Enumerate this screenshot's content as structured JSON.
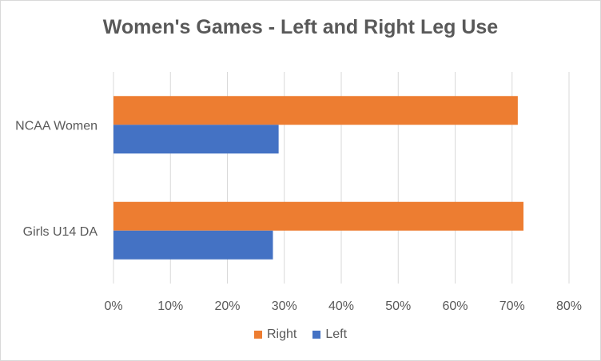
{
  "chart_data": {
    "type": "bar",
    "orientation": "horizontal",
    "title": "Women's Games - Left and Right Leg Use",
    "categories": [
      "NCAA Women",
      "Girls U14 DA"
    ],
    "series": [
      {
        "name": "Right",
        "color": "#ed7d31",
        "values": [
          71,
          72
        ]
      },
      {
        "name": "Left",
        "color": "#4472c4",
        "values": [
          29,
          28
        ]
      }
    ],
    "xlim": [
      0,
      80
    ],
    "x_ticks": [
      "0%",
      "10%",
      "20%",
      "30%",
      "40%",
      "50%",
      "60%",
      "70%",
      "80%"
    ],
    "grid": true,
    "legend_position": "bottom"
  }
}
